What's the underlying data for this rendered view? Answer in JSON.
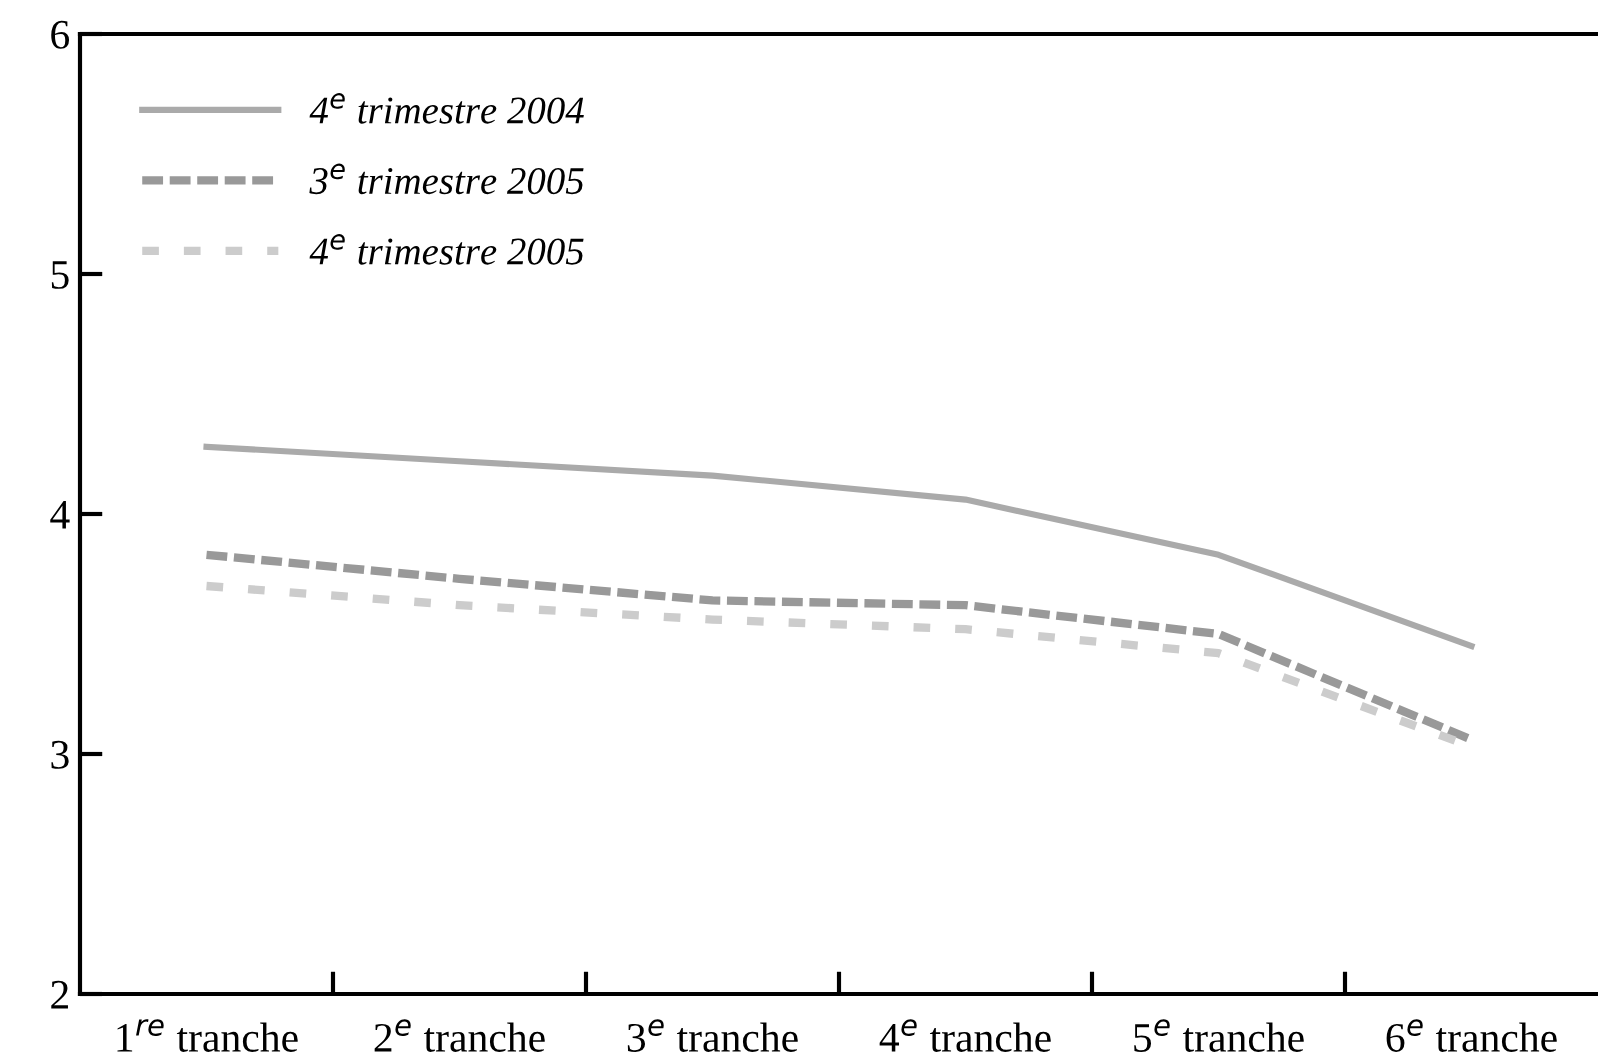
{
  "chart_data": {
    "type": "line",
    "categories": [
      "1$^{re}$ tranche",
      "2$^{e}$ tranche",
      "3$^{e}$ tranche",
      "4$^{e}$ tranche",
      "5$^{e}$ tranche",
      "6$^{e}$ tranche"
    ],
    "series": [
      {
        "name": "4$^{e}$ trimestre 2004",
        "color": "#aaaaaa",
        "line_style": "solid",
        "values": [
          4.28,
          4.22,
          4.16,
          4.06,
          3.83,
          3.45
        ]
      },
      {
        "name": "3$^{e}$ trimestre 2005",
        "color": "#999999",
        "line_style": "dashed",
        "values": [
          3.83,
          3.73,
          3.64,
          3.62,
          3.5,
          3.06
        ]
      },
      {
        "name": "4$^{e}$ trimestre 2005",
        "color": "#cccccc",
        "line_style": "dotted",
        "values": [
          3.7,
          3.62,
          3.56,
          3.52,
          3.42,
          3.03
        ]
      }
    ],
    "ylim": [
      2,
      6
    ],
    "yticks": [
      2,
      3,
      4,
      5,
      6
    ],
    "grid": false,
    "legend": "top left",
    "marker": "none"
  }
}
